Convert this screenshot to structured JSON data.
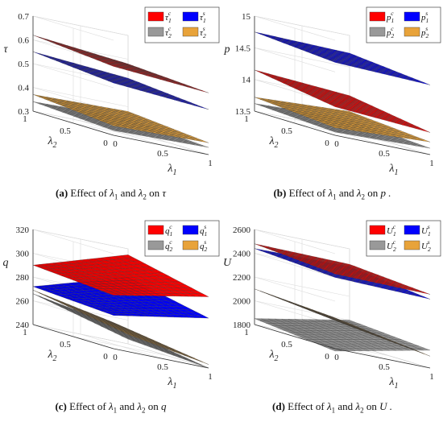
{
  "chart_data": [
    {
      "panel_label": "(a)",
      "caption_text": "Effect of λ1 and λ2 on τ",
      "caption_symbol": "τ",
      "type": "surface3d",
      "xlabel": "λ1",
      "ylabel": "λ2",
      "zlabel": "τ",
      "x_ticks": [
        "0",
        "0.5",
        "1"
      ],
      "y_ticks": [
        "0",
        "0.5",
        "1"
      ],
      "z_ticks": [
        "0.3",
        "0.4",
        "0.5",
        "0.6",
        "0.7"
      ],
      "zlim": [
        0.3,
        0.7
      ],
      "series": [
        {
          "name": "τ1c",
          "sym": "τ",
          "sub": "1",
          "sup": "c",
          "color": "#ff0000",
          "corners": {
            "x0y0": 0.59,
            "x1y0": 0.56,
            "x0y1": 0.62,
            "x1y1": 0.58
          }
        },
        {
          "name": "τ1s",
          "sym": "τ",
          "sub": "1",
          "sup": "s",
          "color": "#0000ff",
          "corners": {
            "x0y0": 0.52,
            "x1y0": 0.49,
            "x0y1": 0.55,
            "x1y1": 0.52
          }
        },
        {
          "name": "τ2c",
          "sym": "τ",
          "sub": "2",
          "sup": "c",
          "color": "#999999",
          "corners": {
            "x0y0": 0.32,
            "x1y0": 0.33,
            "x0y1": 0.34,
            "x1y1": 0.35
          }
        },
        {
          "name": "τ2s",
          "sym": "τ",
          "sub": "2",
          "sup": "s",
          "color": "#e8a33a",
          "corners": {
            "x0y0": 0.34,
            "x1y0": 0.35,
            "x0y1": 0.37,
            "x1y1": 0.38
          }
        }
      ]
    },
    {
      "panel_label": "(b)",
      "caption_text": "Effect of λ1 and λ2 on p .",
      "caption_symbol": "p",
      "type": "surface3d",
      "xlabel": "λ1",
      "ylabel": "λ2",
      "zlabel": "p",
      "x_ticks": [
        "0",
        "0.5",
        "1"
      ],
      "y_ticks": [
        "0",
        "0.5",
        "1"
      ],
      "z_ticks": [
        "13.5",
        "14",
        "14.5",
        "15"
      ],
      "zlim": [
        13.5,
        15
      ],
      "series": [
        {
          "name": "p1c",
          "sym": "p",
          "sub": "1",
          "sup": "c",
          "color": "#ff0000",
          "corners": {
            "x0y0": 13.95,
            "x1y0": 13.85,
            "x0y1": 14.15,
            "x1y1": 14.05
          }
        },
        {
          "name": "p1s",
          "sym": "p",
          "sub": "1",
          "sup": "s",
          "color": "#0000ff",
          "corners": {
            "x0y0": 14.65,
            "x1y0": 14.6,
            "x0y1": 14.75,
            "x1y1": 14.72
          }
        },
        {
          "name": "p2c",
          "sym": "p",
          "sub": "2",
          "sup": "c",
          "color": "#999999",
          "corners": {
            "x0y0": 13.55,
            "x1y0": 13.6,
            "x0y1": 13.62,
            "x1y1": 13.68
          }
        },
        {
          "name": "p2s",
          "sym": "p",
          "sub": "2",
          "sup": "s",
          "color": "#e8a33a",
          "corners": {
            "x0y0": 13.62,
            "x1y0": 13.7,
            "x0y1": 13.72,
            "x1y1": 13.8
          }
        }
      ]
    },
    {
      "panel_label": "(c)",
      "caption_text": "Effect of λ1 and λ2 on q",
      "caption_symbol": "q",
      "type": "surface3d",
      "xlabel": "λ1",
      "ylabel": "λ2",
      "zlabel": "q",
      "x_ticks": [
        "0",
        "0.5",
        "1"
      ],
      "y_ticks": [
        "0",
        "0.5",
        "1"
      ],
      "z_ticks": [
        "240",
        "260",
        "280",
        "300",
        "320"
      ],
      "zlim": [
        240,
        320
      ],
      "series": [
        {
          "name": "q1c",
          "sym": "q",
          "sub": "1",
          "sup": "c",
          "color": "#ff0000",
          "corners": {
            "x0y0": 285,
            "x1y0": 300,
            "x0y1": 290,
            "x1y1": 315
          }
        },
        {
          "name": "q1s",
          "sym": "q",
          "sub": "1",
          "sup": "s",
          "color": "#0000ff",
          "corners": {
            "x0y0": 268,
            "x1y0": 282,
            "x0y1": 272,
            "x1y1": 296
          }
        },
        {
          "name": "q2c",
          "sym": "q",
          "sub": "2",
          "sup": "c",
          "color": "#999999",
          "corners": {
            "x0y0": 260,
            "x1y0": 240,
            "x0y1": 266,
            "x1y1": 244
          }
        },
        {
          "name": "q2s",
          "sym": "q",
          "sub": "2",
          "sup": "s",
          "color": "#e8a33a",
          "corners": {
            "x0y0": 262,
            "x1y0": 243,
            "x0y1": 269,
            "x1y1": 248
          }
        }
      ]
    },
    {
      "panel_label": "(d)",
      "caption_text": "Effect of λ1 and λ2 on U .",
      "caption_symbol": "U",
      "type": "surface3d",
      "xlabel": "λ1",
      "ylabel": "λ2",
      "zlabel": "U",
      "x_ticks": [
        "0",
        "0.5",
        "1"
      ],
      "y_ticks": [
        "0",
        "0.5",
        "1"
      ],
      "z_ticks": [
        "1800",
        "2000",
        "2200",
        "2400",
        "2600"
      ],
      "zlim": [
        1800,
        2600
      ],
      "series": [
        {
          "name": "U1c",
          "sym": "U",
          "sub": "1",
          "sup": "c",
          "color": "#ff0000",
          "corners": {
            "x0y0": 2430,
            "x1y0": 2420,
            "x0y1": 2480,
            "x1y1": 2470
          }
        },
        {
          "name": "U1s",
          "sym": "U",
          "sub": "1",
          "sup": "s",
          "color": "#0000ff",
          "corners": {
            "x0y0": 2400,
            "x1y0": 2380,
            "x0y1": 2440,
            "x1y1": 2450
          }
        },
        {
          "name": "U2c",
          "sym": "U",
          "sub": "2",
          "sup": "c",
          "color": "#999999",
          "corners": {
            "x0y0": 1780,
            "x1y0": 1950,
            "x0y1": 1850,
            "x1y1": 2000
          }
        },
        {
          "name": "U2s",
          "sym": "U",
          "sub": "2",
          "sup": "s",
          "color": "#e8a33a",
          "corners": {
            "x0y0": 2060,
            "x1y0": 1900,
            "x0y1": 2100,
            "x1y1": 1950
          }
        }
      ]
    }
  ]
}
